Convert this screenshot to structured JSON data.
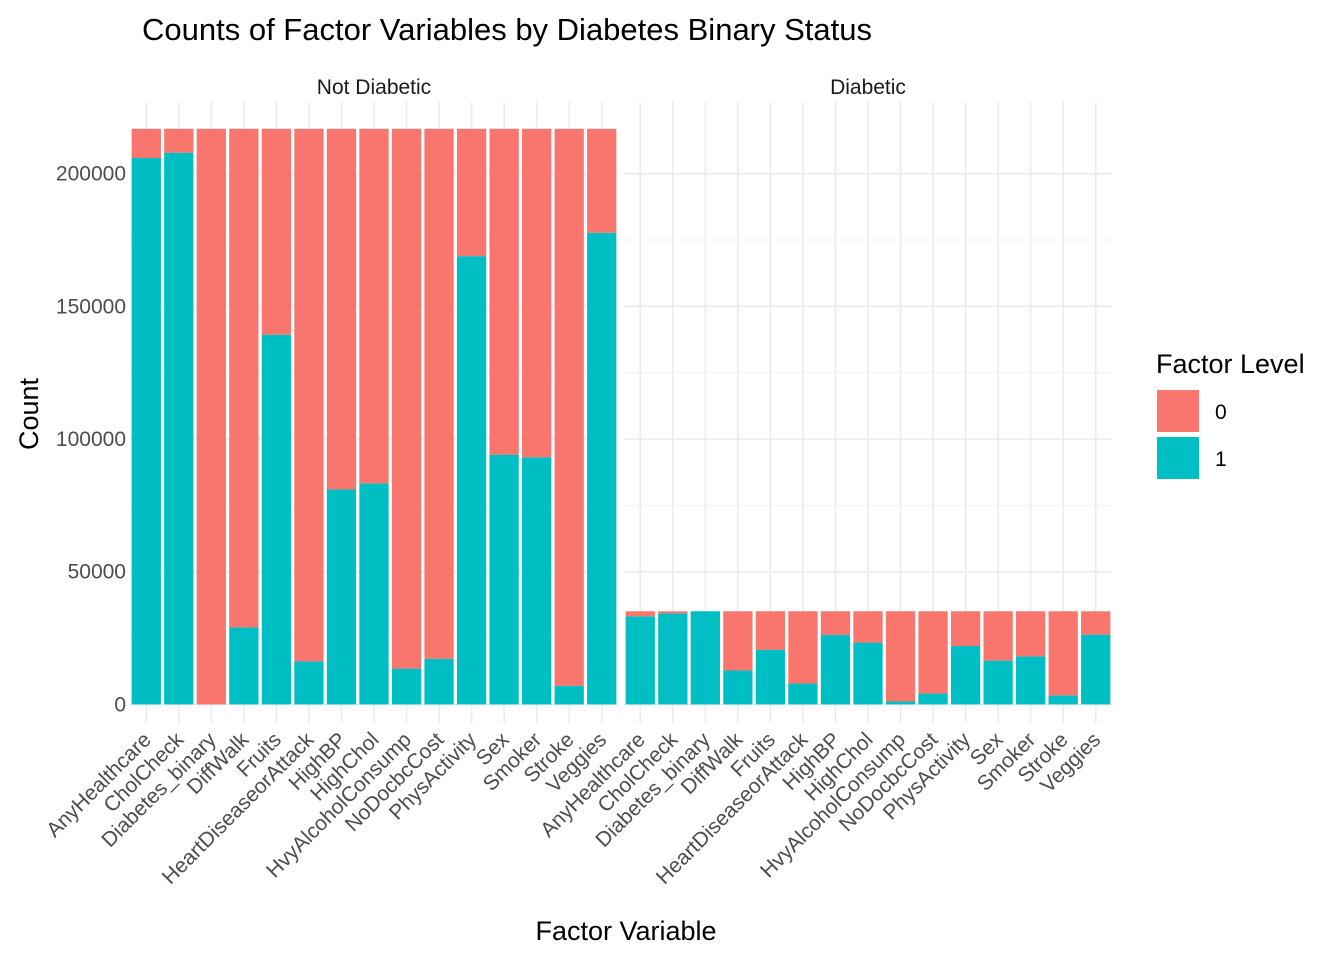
{
  "chart_data": {
    "type": "bar",
    "stacked": true,
    "title": "Counts of Factor Variables by Diabetes Binary Status",
    "xlabel": "Factor Variable",
    "ylabel": "Count",
    "ylim": [
      -7000,
      227000
    ],
    "yticks": [
      0,
      50000,
      100000,
      150000,
      200000
    ],
    "ytick_labels": [
      "0",
      "50000",
      "100000",
      "150000",
      "200000"
    ],
    "grid": true,
    "legend": {
      "title": "Factor Level",
      "position": "right",
      "items": [
        {
          "label": "0",
          "color": "#F8766D"
        },
        {
          "label": "1",
          "color": "#00BFC4"
        }
      ]
    },
    "categories": [
      "AnyHealthcare",
      "CholCheck",
      "Diabetes_binary",
      "DiffWalk",
      "Fruits",
      "HeartDiseaseorAttack",
      "HighBP",
      "HighChol",
      "HvyAlcoholConsump",
      "NoDocbcCost",
      "PhysActivity",
      "Sex",
      "Smoker",
      "Stroke",
      "Veggies"
    ],
    "panels": [
      {
        "label": "Not Diabetic",
        "total": 216900,
        "series": [
          {
            "name": "0",
            "values": [
              11000,
              9000,
              216900,
              187900,
              77600,
              200700,
              135900,
              133600,
              203400,
              199700,
              48000,
              122800,
              123800,
              209900,
              39200
            ]
          },
          {
            "name": "1",
            "values": [
              205900,
              207900,
              0,
              29000,
              139300,
              16200,
              81000,
              83300,
              13500,
              17200,
              168900,
              94100,
              93100,
              7000,
              177700
            ]
          }
        ]
      },
      {
        "label": "Diabetic",
        "total": 35100,
        "series": [
          {
            "name": "0",
            "values": [
              1900,
              800,
              0,
              22300,
              14500,
              27200,
              8900,
              11800,
              34000,
              31000,
              13100,
              18600,
              17000,
              31700,
              8800
            ]
          },
          {
            "name": "1",
            "values": [
              33200,
              34300,
              35100,
              12800,
              20600,
              7900,
              26200,
              23300,
              1100,
              4100,
              22000,
              16500,
              18100,
              3400,
              26300
            ]
          }
        ]
      }
    ]
  }
}
